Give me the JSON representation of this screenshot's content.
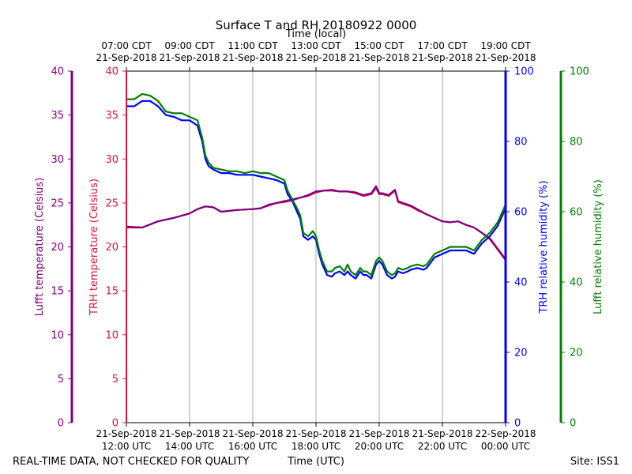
{
  "chart_data": {
    "type": "line",
    "title": "Surface T and RH 20180922 0000",
    "top_axis_title": "Time (local)",
    "xlabel": "Time (UTC)",
    "footer_left": "REAL-TIME DATA, NOT CHECKED FOR QUALITY",
    "footer_right": "Site: ISS1",
    "x_range_hours_utc": [
      12,
      24
    ],
    "top_ticks": [
      {
        "line1": "07:00 CDT",
        "line2": "21-Sep-2018"
      },
      {
        "line1": "09:00 CDT",
        "line2": "21-Sep-2018"
      },
      {
        "line1": "11:00 CDT",
        "line2": "21-Sep-2018"
      },
      {
        "line1": "13:00 CDT",
        "line2": "21-Sep-2018"
      },
      {
        "line1": "15:00 CDT",
        "line2": "21-Sep-2018"
      },
      {
        "line1": "17:00 CDT",
        "line2": "21-Sep-2018"
      },
      {
        "line1": "19:00 CDT",
        "line2": "21-Sep-2018"
      }
    ],
    "bottom_ticks": [
      {
        "line1": "21-Sep-2018",
        "line2": "12:00 UTC"
      },
      {
        "line1": "21-Sep-2018",
        "line2": "14:00 UTC"
      },
      {
        "line1": "21-Sep-2018",
        "line2": "16:00 UTC"
      },
      {
        "line1": "21-Sep-2018",
        "line2": "18:00 UTC"
      },
      {
        "line1": "21-Sep-2018",
        "line2": "20:00 UTC"
      },
      {
        "line1": "21-Sep-2018",
        "line2": "22:00 UTC"
      },
      {
        "line1": "22-Sep-2018",
        "line2": "00:00 UTC"
      }
    ],
    "axes": {
      "lufft_temp": {
        "label": "Lufft temperature (Celsius)",
        "range": [
          0,
          40
        ],
        "ticks": [
          0,
          5,
          10,
          15,
          20,
          25,
          30,
          35,
          40
        ],
        "color": "#800080"
      },
      "trh_temp": {
        "label": "TRH temperature (Celsius)",
        "range": [
          0,
          40
        ],
        "ticks": [
          0,
          5,
          10,
          15,
          20,
          25,
          30,
          35,
          40
        ],
        "color": "#dc143c"
      },
      "trh_rh": {
        "label": "TRH relative humidity (%)",
        "range": [
          0,
          100
        ],
        "ticks": [
          0,
          20,
          40,
          60,
          80,
          100
        ],
        "color": "#0000ff"
      },
      "lufft_rh": {
        "label": "Lufft relative humidity (%)",
        "range": [
          0,
          100
        ],
        "ticks": [
          0,
          20,
          40,
          60,
          80,
          100
        ],
        "color": "#008000"
      }
    },
    "series": [
      {
        "name": "TRH temperature",
        "axis": "trh_temp",
        "color": "#dc143c",
        "x": [
          12.0,
          12.5,
          13.0,
          13.5,
          14.0,
          14.25,
          14.5,
          14.75,
          15.0,
          15.5,
          16.0,
          16.25,
          16.5,
          16.75,
          17.0,
          17.25,
          17.5,
          17.75,
          18.0,
          18.25,
          18.5,
          18.75,
          19.0,
          19.25,
          19.5,
          19.75,
          19.9,
          20.0,
          20.1,
          20.3,
          20.5,
          20.6,
          20.75,
          21.0,
          21.25,
          21.5,
          21.75,
          22.0,
          22.25,
          22.5,
          22.75,
          23.0,
          23.25,
          23.5,
          23.75,
          24.0
        ],
        "values": [
          22.2,
          22.2,
          22.9,
          23.3,
          23.8,
          24.3,
          24.6,
          24.5,
          24.0,
          24.2,
          24.3,
          24.4,
          24.7,
          25.0,
          25.1,
          25.3,
          25.6,
          25.8,
          26.2,
          26.4,
          26.4,
          26.3,
          26.3,
          26.1,
          25.8,
          26.0,
          26.7,
          26.0,
          26.0,
          25.8,
          26.4,
          25.1,
          24.9,
          24.6,
          24.1,
          23.7,
          23.3,
          22.9,
          22.8,
          22.9,
          22.5,
          22.2,
          21.6,
          21.0,
          19.8,
          18.6
        ]
      },
      {
        "name": "Lufft temperature",
        "axis": "lufft_temp",
        "color": "#800080",
        "x": [
          12.0,
          12.5,
          13.0,
          13.5,
          14.0,
          14.25,
          14.5,
          14.75,
          15.0,
          15.5,
          16.0,
          16.25,
          16.5,
          16.75,
          17.0,
          17.25,
          17.5,
          17.75,
          18.0,
          18.25,
          18.5,
          18.75,
          19.0,
          19.25,
          19.5,
          19.75,
          19.9,
          20.0,
          20.1,
          20.3,
          20.5,
          20.6,
          20.75,
          21.0,
          21.25,
          21.5,
          21.75,
          22.0,
          22.25,
          22.5,
          22.75,
          23.0,
          23.25,
          23.5,
          23.75,
          24.0
        ],
        "values": [
          22.3,
          22.2,
          22.9,
          23.3,
          23.8,
          24.3,
          24.6,
          24.5,
          24.0,
          24.2,
          24.3,
          24.4,
          24.8,
          25.0,
          25.2,
          25.4,
          25.6,
          25.9,
          26.3,
          26.4,
          26.5,
          26.3,
          26.3,
          26.2,
          25.9,
          26.1,
          26.9,
          26.1,
          26.1,
          25.9,
          26.5,
          25.2,
          25.0,
          24.7,
          24.2,
          23.7,
          23.3,
          22.9,
          22.8,
          22.9,
          22.5,
          22.2,
          21.6,
          20.9,
          19.7,
          18.5
        ]
      },
      {
        "name": "TRH relative humidity",
        "axis": "trh_rh",
        "color": "#0000ff",
        "x": [
          12.0,
          12.25,
          12.5,
          12.75,
          13.0,
          13.25,
          13.5,
          13.75,
          14.0,
          14.25,
          14.4,
          14.5,
          14.6,
          14.75,
          15.0,
          15.25,
          15.5,
          15.75,
          16.0,
          16.25,
          16.5,
          16.75,
          17.0,
          17.1,
          17.25,
          17.4,
          17.5,
          17.6,
          17.75,
          17.9,
          18.0,
          18.1,
          18.2,
          18.35,
          18.5,
          18.6,
          18.75,
          18.9,
          19.0,
          19.1,
          19.25,
          19.4,
          19.5,
          19.6,
          19.75,
          19.9,
          20.0,
          20.1,
          20.25,
          20.4,
          20.5,
          20.6,
          20.75,
          20.9,
          21.0,
          21.2,
          21.4,
          21.5,
          21.75,
          22.0,
          22.25,
          22.5,
          22.75,
          23.0,
          23.25,
          23.5,
          23.75,
          24.0
        ],
        "values": [
          90.0,
          90.0,
          91.5,
          91.5,
          90.0,
          87.5,
          87.0,
          86.0,
          86.0,
          84.5,
          80.0,
          75.0,
          73.0,
          72.0,
          71.0,
          71.0,
          70.5,
          70.5,
          70.5,
          70.0,
          69.5,
          69.0,
          68.0,
          65.0,
          63.0,
          60.0,
          58.0,
          53.0,
          52.0,
          53.0,
          52.0,
          48.0,
          45.0,
          42.0,
          41.5,
          42.5,
          43.0,
          42.0,
          43.0,
          42.0,
          41.0,
          43.0,
          42.0,
          42.0,
          41.0,
          45.0,
          46.0,
          45.0,
          42.0,
          41.0,
          41.5,
          43.0,
          42.5,
          43.0,
          43.5,
          44.0,
          43.5,
          44.0,
          47.0,
          48.0,
          49.0,
          49.0,
          49.0,
          48.0,
          51.0,
          53.0,
          56.0,
          61.0
        ]
      },
      {
        "name": "Lufft relative humidity",
        "axis": "lufft_rh",
        "color": "#008000",
        "x": [
          12.0,
          12.25,
          12.5,
          12.75,
          13.0,
          13.25,
          13.5,
          13.75,
          14.0,
          14.25,
          14.4,
          14.5,
          14.6,
          14.75,
          15.0,
          15.25,
          15.5,
          15.75,
          16.0,
          16.25,
          16.5,
          16.75,
          17.0,
          17.1,
          17.25,
          17.4,
          17.5,
          17.6,
          17.75,
          17.9,
          18.0,
          18.1,
          18.2,
          18.35,
          18.5,
          18.6,
          18.75,
          18.9,
          19.0,
          19.1,
          19.25,
          19.4,
          19.5,
          19.6,
          19.75,
          19.9,
          20.0,
          20.1,
          20.25,
          20.4,
          20.5,
          20.6,
          20.75,
          20.9,
          21.0,
          21.2,
          21.4,
          21.5,
          21.75,
          22.0,
          22.25,
          22.5,
          22.75,
          23.0,
          23.25,
          23.5,
          23.75,
          24.0
        ],
        "values": [
          92.0,
          92.0,
          93.5,
          93.0,
          91.5,
          88.5,
          88.0,
          88.0,
          87.0,
          86.0,
          81.0,
          76.0,
          74.0,
          72.5,
          72.0,
          71.5,
          71.5,
          71.0,
          71.5,
          71.0,
          71.0,
          70.0,
          69.0,
          66.0,
          63.5,
          61.0,
          59.0,
          54.0,
          53.0,
          54.5,
          53.0,
          49.0,
          46.0,
          43.0,
          43.0,
          44.0,
          44.5,
          43.0,
          45.0,
          43.0,
          42.0,
          44.0,
          43.0,
          43.0,
          42.0,
          46.0,
          47.0,
          46.0,
          43.0,
          42.0,
          42.5,
          44.0,
          43.5,
          44.0,
          44.5,
          45.0,
          44.5,
          45.0,
          48.0,
          49.0,
          50.0,
          50.0,
          50.0,
          49.0,
          52.0,
          54.0,
          57.0,
          62.0
        ]
      }
    ]
  }
}
